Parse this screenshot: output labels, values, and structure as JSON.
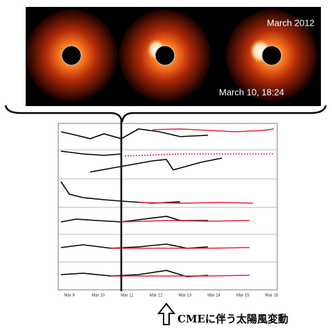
{
  "figure": {
    "image_labels": {
      "month": "March 2012",
      "timestamp": "March 10, 18:24"
    },
    "plot_dates": [
      "Mar 9",
      "Mar 10",
      "Mar 11",
      "Mar 12",
      "Mar 13",
      "Mar 14",
      "Mar 15",
      "Mar 16"
    ],
    "caption": "CMEに伴う太陽風変動"
  }
}
